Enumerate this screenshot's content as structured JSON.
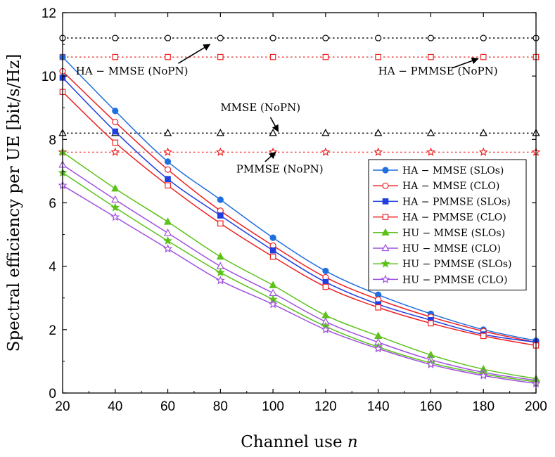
{
  "chart_data": {
    "type": "line",
    "xlabel_text": "Channel use",
    "xlabel_var": "n",
    "ylabel": "Spectral efficiency per UE [bit/s/Hz]",
    "xlim": [
      20,
      200
    ],
    "ylim": [
      0,
      12
    ],
    "xticks": [
      20,
      40,
      60,
      80,
      100,
      120,
      140,
      160,
      180,
      200
    ],
    "yticks": [
      0,
      2,
      4,
      6,
      8,
      10,
      12
    ],
    "grid": false,
    "legend_position": "center-right",
    "x": [
      20,
      40,
      60,
      80,
      100,
      120,
      140,
      160,
      180,
      200
    ],
    "series": [
      {
        "name": "HA − MMSE (SLOs)",
        "color": "#1f6fe0",
        "marker": "circle",
        "filled": true,
        "values": [
          10.6,
          8.9,
          7.3,
          6.1,
          4.9,
          3.85,
          3.1,
          2.5,
          2.0,
          1.65
        ]
      },
      {
        "name": "HA − MMSE (CLO)",
        "color": "#ee2222",
        "marker": "circle",
        "filled": false,
        "values": [
          10.15,
          8.55,
          7.05,
          5.75,
          4.65,
          3.65,
          2.95,
          2.4,
          1.95,
          1.6
        ]
      },
      {
        "name": "HA − PMMSE (SLOs)",
        "color": "#1f3fe0",
        "marker": "square",
        "filled": true,
        "values": [
          9.95,
          8.25,
          6.75,
          5.6,
          4.5,
          3.5,
          2.8,
          2.3,
          1.85,
          1.6
        ]
      },
      {
        "name": "HA − PMMSE (CLO)",
        "color": "#ee2222",
        "marker": "square",
        "filled": false,
        "values": [
          9.5,
          7.9,
          6.55,
          5.35,
          4.3,
          3.35,
          2.7,
          2.2,
          1.8,
          1.5
        ]
      },
      {
        "name": "HU − MMSE (SLOs)",
        "color": "#5cc21a",
        "marker": "triangle",
        "filled": true,
        "values": [
          7.6,
          6.45,
          5.4,
          4.3,
          3.4,
          2.45,
          1.8,
          1.2,
          0.75,
          0.45
        ]
      },
      {
        "name": "HU − MMSE (CLO)",
        "color": "#a050e0",
        "marker": "triangle",
        "filled": false,
        "values": [
          7.2,
          6.1,
          5.05,
          4.0,
          3.15,
          2.25,
          1.6,
          1.05,
          0.65,
          0.4
        ]
      },
      {
        "name": "HU − PMMSE (SLOs)",
        "color": "#5cc21a",
        "marker": "star",
        "filled": true,
        "values": [
          6.95,
          5.85,
          4.8,
          3.8,
          2.95,
          2.1,
          1.45,
          0.95,
          0.6,
          0.35
        ]
      },
      {
        "name": "HU − PMMSE (CLO)",
        "color": "#a050e0",
        "marker": "star",
        "filled": false,
        "values": [
          6.55,
          5.55,
          4.55,
          3.55,
          2.8,
          2.0,
          1.4,
          0.9,
          0.55,
          0.3
        ]
      }
    ],
    "reference_lines": [
      {
        "label": "HA − MMSE (NoPN)",
        "value": 11.2,
        "color": "#000000",
        "marker": "circle"
      },
      {
        "label": "HA − PMMSE (NoPN)",
        "value": 10.6,
        "color": "#ee2222",
        "marker": "square"
      },
      {
        "label": "MMSE (NoPN)",
        "value": 8.2,
        "color": "#000000",
        "marker": "triangle"
      },
      {
        "label": "PMMSE (NoPN)",
        "value": 7.6,
        "color": "#ee2222",
        "marker": "star"
      }
    ],
    "annotations": [
      {
        "text": "HA − MMSE (NoPN)",
        "ref": 0,
        "text_at": [
          25,
          10.05
        ],
        "arrow_from": [
          64,
          10.4
        ],
        "arrow_to": [
          76,
          11.0
        ]
      },
      {
        "text": "HA − PMMSE (NoPN)",
        "ref": 1,
        "text_at": [
          140,
          10.05
        ],
        "arrow_from": [
          168,
          10.25
        ],
        "arrow_to": [
          178,
          10.55
        ]
      },
      {
        "text": "MMSE (NoPN)",
        "ref": 2,
        "text_at": [
          80,
          8.9
        ],
        "arrow_from": [
          99,
          8.7
        ],
        "arrow_to": [
          102,
          8.25
        ]
      },
      {
        "text": "PMMSE (NoPN)",
        "ref": 3,
        "text_at": [
          86,
          6.95
        ],
        "arrow_from": [
          97,
          7.3
        ],
        "arrow_to": [
          101,
          7.6
        ]
      }
    ]
  }
}
